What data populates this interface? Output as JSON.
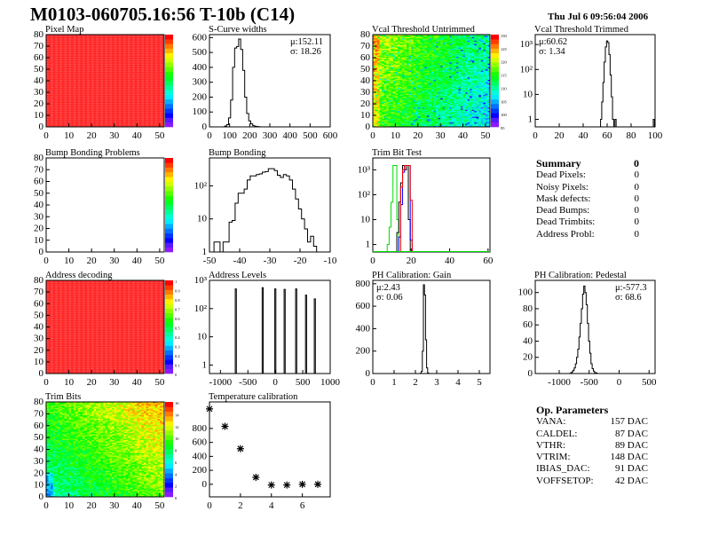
{
  "header": {
    "title": "M0103-060705.16:56 T-10b (C14)",
    "date": "Thu Jul  6 09:56:04 2006"
  },
  "summary": {
    "title": "Summary",
    "total": "0",
    "rows": [
      {
        "label": "Dead Pixels:",
        "value": "0"
      },
      {
        "label": "Noisy Pixels:",
        "value": "0"
      },
      {
        "label": "Mask defects:",
        "value": "0"
      },
      {
        "label": "Dead Bumps:",
        "value": "0"
      },
      {
        "label": "Dead Trimbits:",
        "value": "0"
      },
      {
        "label": "Address Probl:",
        "value": "0"
      }
    ]
  },
  "op_parameters": {
    "title": "Op. Parameters",
    "rows": [
      {
        "label": "VANA:",
        "value": "157 DAC"
      },
      {
        "label": "CALDEL:",
        "value": "87 DAC"
      },
      {
        "label": "VTHR:",
        "value": "89 DAC"
      },
      {
        "label": "VTRIM:",
        "value": "148 DAC"
      },
      {
        "label": "IBIAS_DAC:",
        "value": "91 DAC"
      },
      {
        "label": "VOFFSETOP:",
        "value": "42 DAC"
      }
    ]
  },
  "chart_data": [
    {
      "id": "pixel-map",
      "type": "heatmap",
      "title": "Pixel Map",
      "xlim": [
        0,
        52
      ],
      "ylim": [
        0,
        80
      ],
      "xticks": [
        "0",
        "10",
        "20",
        "30",
        "40",
        "50"
      ],
      "yticks": [
        "0",
        "10",
        "20",
        "30",
        "40",
        "50",
        "60",
        "70",
        "80"
      ],
      "fill": "uniform",
      "zrange": [
        0,
        10
      ],
      "palette_labels": []
    },
    {
      "id": "s-curve-widths",
      "type": "bar",
      "title": "S-Curve widths",
      "xlim": [
        0,
        600
      ],
      "ylim": [
        0,
        620
      ],
      "xticks": [
        "0",
        "100",
        "200",
        "300",
        "400",
        "500",
        "600"
      ],
      "yticks": [
        "0",
        "100",
        "200",
        "300",
        "400",
        "500",
        "600"
      ],
      "stats": [
        "μ:152.11",
        "σ: 18.26"
      ],
      "series": [
        {
          "bin_width": 10,
          "x": [
            80,
            90,
            100,
            110,
            120,
            130,
            140,
            150,
            160,
            170,
            180,
            190,
            200,
            210,
            220,
            230,
            240,
            250
          ],
          "values": [
            5,
            15,
            60,
            180,
            400,
            530,
            540,
            590,
            520,
            380,
            200,
            90,
            40,
            20,
            8,
            4,
            2,
            1
          ],
          "color": "#000000"
        }
      ]
    },
    {
      "id": "vcal-threshold-untrimmed",
      "type": "heatmap",
      "title": "Vcal Threshold Untrimmed",
      "xlim": [
        0,
        52
      ],
      "ylim": [
        0,
        80
      ],
      "xticks": [
        "0",
        "10",
        "20",
        "30",
        "40",
        "50"
      ],
      "yticks": [
        "0",
        "10",
        "20",
        "30",
        "40",
        "50",
        "60",
        "70",
        "80"
      ],
      "fill": "varying",
      "zrange": [
        90,
        132
      ],
      "palette_labels": [
        "130",
        "125",
        "120",
        "115",
        "110",
        "105",
        "100",
        "95"
      ]
    },
    {
      "id": "vcal-threshold-trimmed",
      "type": "bar",
      "title": "Vcal Threshold Trimmed",
      "log": true,
      "xlim": [
        0,
        100
      ],
      "ylim": [
        0.5,
        2500
      ],
      "xticks": [
        "0",
        "20",
        "40",
        "60",
        "80",
        "100"
      ],
      "yticks": [
        "1",
        "10",
        "10²",
        "10³"
      ],
      "stats": [
        "μ:60.62",
        "σ: 1.34"
      ],
      "series": [
        {
          "bin_width": 1,
          "x": [
            55,
            56,
            57,
            58,
            59,
            60,
            61,
            62,
            63,
            64,
            65,
            66,
            67,
            99
          ],
          "values": [
            1,
            5,
            30,
            200,
            800,
            1400,
            1200,
            400,
            60,
            8,
            1,
            0,
            1,
            1
          ],
          "color": "#000000"
        }
      ]
    },
    {
      "id": "bump-bonding-problems",
      "type": "heatmap",
      "title": "Bump Bonding Problems",
      "xlim": [
        0,
        52
      ],
      "ylim": [
        0,
        80
      ],
      "xticks": [
        "0",
        "10",
        "20",
        "30",
        "40",
        "50"
      ],
      "yticks": [
        "0",
        "10",
        "20",
        "30",
        "40",
        "50",
        "60",
        "70",
        "80"
      ],
      "fill": "empty",
      "zrange": [
        0,
        1
      ],
      "palette_labels": []
    },
    {
      "id": "bump-bonding",
      "type": "bar",
      "title": "Bump Bonding",
      "log": true,
      "xlim": [
        -50,
        -10
      ],
      "ylim": [
        1,
        700
      ],
      "xticks": [
        "-50",
        "-40",
        "-30",
        "-20",
        "-10"
      ],
      "yticks": [
        "1",
        "10",
        "10²"
      ],
      "series": [
        {
          "bin_width": 1,
          "x": [
            -48,
            -47,
            -46,
            -45,
            -44,
            -43,
            -42,
            -41,
            -40,
            -39,
            -38,
            -37,
            -36,
            -35,
            -34,
            -33,
            -32,
            -31,
            -30,
            -29,
            -28,
            -27,
            -26,
            -25,
            -24,
            -23,
            -22,
            -21,
            -20,
            -19,
            -18,
            -17,
            -16,
            -15,
            -14
          ],
          "values": [
            2,
            2,
            1,
            2,
            2,
            8,
            9,
            30,
            60,
            60,
            80,
            150,
            200,
            200,
            220,
            230,
            260,
            270,
            330,
            330,
            290,
            210,
            180,
            220,
            200,
            150,
            80,
            40,
            20,
            10,
            5,
            2,
            3,
            1.5,
            1
          ],
          "color": "#000000"
        }
      ]
    },
    {
      "id": "trim-bit-test",
      "type": "bar",
      "title": "Trim Bit Test",
      "log": true,
      "xlim": [
        0,
        61
      ],
      "ylim": [
        0.5,
        3000
      ],
      "xticks": [
        "0",
        "20",
        "40",
        "60"
      ],
      "yticks": [
        "1",
        "10",
        "10²",
        "10³"
      ],
      "series": [
        {
          "bin_width": 1,
          "x": [
            8,
            9,
            10,
            11,
            12,
            13
          ],
          "values": [
            1,
            5,
            50,
            1500,
            1500,
            10
          ],
          "color": "#00dd00"
        },
        {
          "bin_width": 1,
          "x": [
            13,
            14,
            15,
            16,
            17,
            18,
            19
          ],
          "values": [
            3,
            50,
            300,
            1500,
            1000,
            1500,
            10
          ],
          "color": "#000000"
        },
        {
          "bin_width": 1,
          "x": [
            14,
            15,
            16,
            17,
            18,
            19,
            20
          ],
          "values": [
            2,
            40,
            800,
            1500,
            1500,
            1500,
            1.5
          ],
          "color": "#0000ff"
        },
        {
          "bin_width": 1,
          "x": [
            15,
            16,
            17,
            18,
            19,
            20
          ],
          "values": [
            200,
            1000,
            1500,
            1500,
            1500,
            60
          ],
          "color": "#ff0000"
        }
      ]
    },
    {
      "id": "address-decoding",
      "type": "heatmap",
      "title": "Address decoding",
      "xlim": [
        0,
        52
      ],
      "ylim": [
        0,
        80
      ],
      "xticks": [
        "0",
        "10",
        "20",
        "30",
        "40",
        "50"
      ],
      "yticks": [
        "0",
        "10",
        "20",
        "30",
        "40",
        "50",
        "60",
        "70",
        "80"
      ],
      "fill": "uniform",
      "zrange": [
        0,
        1
      ],
      "palette_labels": [
        "1",
        "0.9",
        "0.8",
        "0.7",
        "0.6",
        "0.5",
        "0.4",
        "0.3",
        "0.2",
        "0.1",
        "0"
      ]
    },
    {
      "id": "address-levels",
      "type": "bar",
      "title": "Address Levels",
      "log": true,
      "xlim": [
        -1200,
        1000
      ],
      "ylim": [
        0.5,
        1000
      ],
      "xticks": [
        "-1000",
        "-500",
        "0",
        "500",
        "1000"
      ],
      "yticks": [
        "1",
        "10",
        "10²",
        "10³"
      ],
      "series": [
        {
          "bin_width": 20,
          "x": [
            -720,
            -230,
            0,
            170,
            380,
            560,
            720
          ],
          "values": [
            500,
            550,
            500,
            480,
            500,
            300,
            220
          ],
          "color": "#000000"
        }
      ]
    },
    {
      "id": "ph-calibration-gain",
      "type": "bar",
      "title": "PH Calibration: Gain",
      "xlim": [
        0,
        5.5
      ],
      "ylim": [
        0,
        830
      ],
      "xticks": [
        "0",
        "1",
        "2",
        "3",
        "4",
        "5"
      ],
      "yticks": [
        "0",
        "200",
        "400",
        "600",
        "800"
      ],
      "stats": [
        "μ:2.43",
        "σ: 0.06"
      ],
      "series": [
        {
          "bin_width": 0.05,
          "x": [
            2.25,
            2.3,
            2.35,
            2.4,
            2.45,
            2.5,
            2.55,
            2.6
          ],
          "values": [
            2,
            20,
            200,
            790,
            700,
            300,
            50,
            5
          ],
          "color": "#000000"
        }
      ]
    },
    {
      "id": "ph-calibration-pedestal",
      "type": "bar",
      "title": "PH Calibration: Pedestal",
      "xlim": [
        -1400,
        600
      ],
      "ylim": [
        0,
        115
      ],
      "xticks": [
        "-1000",
        "-500",
        "0",
        "500"
      ],
      "yticks": [
        "0",
        "20",
        "40",
        "60",
        "80",
        "100"
      ],
      "stats": [
        "μ:-577.3",
        "σ: 68.6"
      ],
      "series": [
        {
          "bin_width": 20,
          "x": [
            -800,
            -780,
            -760,
            -740,
            -720,
            -700,
            -680,
            -660,
            -640,
            -620,
            -600,
            -580,
            -560,
            -540,
            -520,
            -500,
            -480,
            -460,
            -440,
            -420,
            -400,
            -380
          ],
          "values": [
            1,
            2,
            4,
            7,
            12,
            20,
            30,
            45,
            62,
            80,
            98,
            108,
            100,
            85,
            62,
            40,
            25,
            12,
            6,
            3,
            1,
            1
          ],
          "color": "#000000"
        }
      ]
    },
    {
      "id": "trim-bits",
      "type": "heatmap",
      "title": "Trim Bits",
      "xlim": [
        0,
        52
      ],
      "ylim": [
        0,
        80
      ],
      "xticks": [
        "0",
        "10",
        "20",
        "30",
        "40",
        "50"
      ],
      "yticks": [
        "0",
        "10",
        "20",
        "30",
        "40",
        "50",
        "60",
        "70",
        "80"
      ],
      "fill": "varying2",
      "zrange": [
        0,
        16
      ],
      "palette_labels": [
        "16",
        "14",
        "12",
        "10",
        "8",
        "6",
        "4",
        "2",
        "0"
      ]
    },
    {
      "id": "temperature-calibration",
      "type": "scatter",
      "title": "Temperature calibration",
      "xlim": [
        0,
        7.8
      ],
      "ylim": [
        -180,
        1180
      ],
      "xticks": [
        "0",
        "2",
        "4",
        "6"
      ],
      "yticks": [
        "0",
        "200",
        "400",
        "600",
        "800"
      ],
      "x": [
        0,
        1,
        2,
        3,
        4,
        5,
        6,
        7
      ],
      "y": [
        1080,
        830,
        510,
        100,
        -10,
        -10,
        0,
        0
      ]
    }
  ]
}
